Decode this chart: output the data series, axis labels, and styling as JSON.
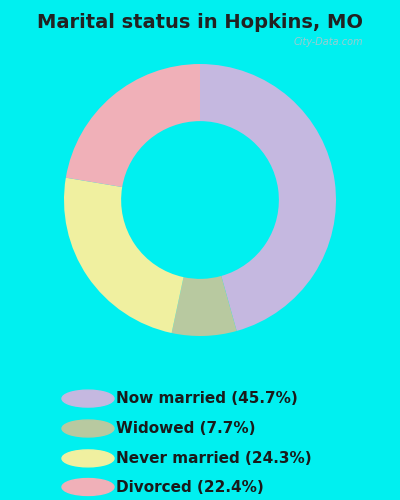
{
  "title": "Marital status in Hopkins, MO",
  "categories": [
    "Now married (45.7%)",
    "Widowed (7.7%)",
    "Never married (24.3%)",
    "Divorced (22.4%)"
  ],
  "values": [
    45.7,
    7.7,
    24.3,
    22.4
  ],
  "colors": [
    "#c5b8e0",
    "#b8c9a0",
    "#f0f0a0",
    "#f0b0b8"
  ],
  "outer_background": "#00f0f0",
  "title_fontsize": 14,
  "legend_fontsize": 11,
  "watermark": "City-Data.com",
  "start_angle": 90
}
